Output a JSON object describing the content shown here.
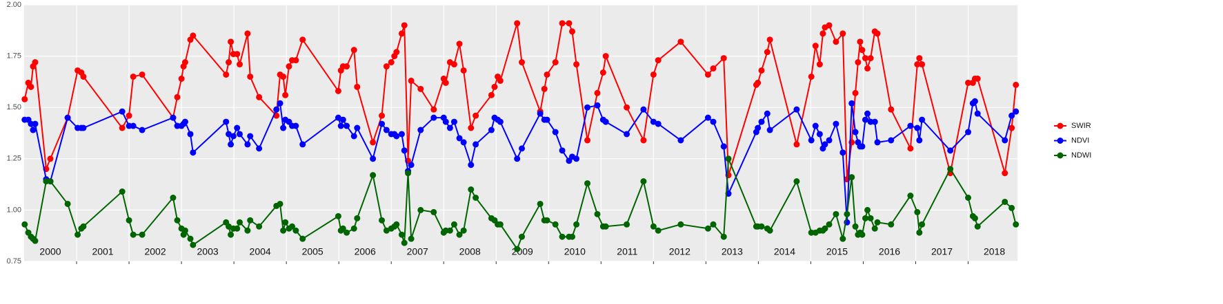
{
  "chart_data": {
    "type": "line",
    "x": [
      2000.01,
      2000.08,
      2000.13,
      2000.17,
      2000.21,
      2000.42,
      2000.5,
      2000.83,
      2001.02,
      2001.09,
      2001.13,
      2001.87,
      2002.0,
      2002.08,
      2002.25,
      2002.84,
      2002.92,
      2003.0,
      2003.04,
      2003.07,
      2003.17,
      2003.22,
      2003.85,
      2003.9,
      2003.94,
      2003.99,
      2004.06,
      2004.11,
      2004.26,
      2004.31,
      2004.48,
      2004.81,
      2004.88,
      2004.94,
      2004.98,
      2005.05,
      2005.11,
      2005.18,
      2005.31,
      2005.99,
      2006.04,
      2006.08,
      2006.15,
      2006.29,
      2006.35,
      2006.65,
      2006.82,
      2006.91,
      2007.0,
      2007.06,
      2007.1,
      2007.2,
      2007.25,
      2007.32,
      2007.38,
      2007.56,
      2007.81,
      2008.0,
      2008.04,
      2008.12,
      2008.2,
      2008.3,
      2008.38,
      2008.52,
      2008.61,
      2008.91,
      2008.97,
      2009.03,
      2009.08,
      2009.4,
      2009.49,
      2009.84,
      2009.92,
      2009.97,
      2010.13,
      2010.26,
      2010.39,
      2010.45,
      2010.53,
      2010.74,
      2010.93,
      2011.04,
      2011.09,
      2011.49,
      2011.81,
      2012.0,
      2012.09,
      2012.52,
      2013.04,
      2013.14,
      2013.34,
      2013.43,
      2013.96,
      2013.99,
      2014.06,
      2014.17,
      2014.22,
      2014.73,
      2015.01,
      2015.09,
      2015.17,
      2015.23,
      2015.27,
      2015.35,
      2015.48,
      2015.61,
      2015.69,
      2015.78,
      2015.85,
      2015.9,
      2015.94,
      2015.98,
      2016.04,
      2016.08,
      2016.14,
      2016.22,
      2016.27,
      2016.53,
      2016.9,
      2017.03,
      2017.07,
      2017.12,
      2017.66,
      2018.0,
      2018.09,
      2018.13,
      2018.18,
      2018.7,
      2018.83,
      2018.91
    ],
    "series": [
      {
        "name": "SWIR",
        "color": "#ff0000",
        "values": [
          1.54,
          1.62,
          1.6,
          1.7,
          1.72,
          1.2,
          1.25,
          1.45,
          1.68,
          1.67,
          1.65,
          1.4,
          1.46,
          1.65,
          1.66,
          1.45,
          1.55,
          1.64,
          1.7,
          1.72,
          1.83,
          1.85,
          1.66,
          1.72,
          1.82,
          1.76,
          1.76,
          1.71,
          1.86,
          1.65,
          1.55,
          1.46,
          1.66,
          1.65,
          1.56,
          1.7,
          1.73,
          1.73,
          1.83,
          1.58,
          1.68,
          1.7,
          1.7,
          1.78,
          1.6,
          1.33,
          1.46,
          1.7,
          1.72,
          1.75,
          1.77,
          1.86,
          1.9,
          1.24,
          1.63,
          1.59,
          1.49,
          1.64,
          1.62,
          1.72,
          1.71,
          1.81,
          1.68,
          1.4,
          1.46,
          1.56,
          1.6,
          1.65,
          1.63,
          1.91,
          1.72,
          1.48,
          1.59,
          1.66,
          1.72,
          1.91,
          1.91,
          1.87,
          1.71,
          1.34,
          1.57,
          1.67,
          1.75,
          1.5,
          1.34,
          1.66,
          1.73,
          1.82,
          1.66,
          1.69,
          1.74,
          1.17,
          1.61,
          1.62,
          1.68,
          1.77,
          1.83,
          1.32,
          1.65,
          1.8,
          1.71,
          1.86,
          1.89,
          1.9,
          1.82,
          1.86,
          1.15,
          1.33,
          1.57,
          1.72,
          1.82,
          1.78,
          1.74,
          1.69,
          1.74,
          1.87,
          1.86,
          1.49,
          1.3,
          1.71,
          1.74,
          1.71,
          1.18,
          1.62,
          1.62,
          1.64,
          1.64,
          1.18,
          1.4,
          1.61
        ]
      },
      {
        "name": "NDVI",
        "color": "#0000ff",
        "values": [
          1.44,
          1.44,
          1.42,
          1.39,
          1.42,
          1.15,
          1.14,
          1.45,
          1.4,
          1.4,
          1.4,
          1.48,
          1.41,
          1.41,
          1.39,
          1.45,
          1.41,
          1.41,
          1.42,
          1.43,
          1.37,
          1.28,
          1.43,
          1.37,
          1.32,
          1.36,
          1.4,
          1.37,
          1.32,
          1.36,
          1.3,
          1.49,
          1.52,
          1.4,
          1.44,
          1.43,
          1.41,
          1.41,
          1.32,
          1.45,
          1.41,
          1.44,
          1.41,
          1.36,
          1.4,
          1.25,
          1.42,
          1.39,
          1.37,
          1.37,
          1.36,
          1.37,
          1.29,
          1.19,
          1.22,
          1.39,
          1.45,
          1.45,
          1.43,
          1.4,
          1.43,
          1.35,
          1.33,
          1.22,
          1.32,
          1.39,
          1.45,
          1.44,
          1.43,
          1.25,
          1.3,
          1.47,
          1.44,
          1.44,
          1.38,
          1.29,
          1.24,
          1.26,
          1.25,
          1.5,
          1.51,
          1.44,
          1.43,
          1.37,
          1.49,
          1.43,
          1.42,
          1.34,
          1.45,
          1.43,
          1.31,
          1.08,
          1.38,
          1.4,
          1.43,
          1.47,
          1.39,
          1.49,
          1.34,
          1.41,
          1.37,
          1.3,
          1.32,
          1.34,
          1.42,
          1.28,
          0.94,
          1.52,
          1.38,
          1.33,
          1.31,
          1.31,
          1.44,
          1.47,
          1.43,
          1.43,
          1.33,
          1.34,
          1.41,
          1.4,
          1.34,
          1.44,
          1.29,
          1.38,
          1.52,
          1.53,
          1.47,
          1.34,
          1.46,
          1.48
        ]
      },
      {
        "name": "NDWI",
        "color": "#006400",
        "values": [
          0.93,
          0.89,
          0.87,
          0.86,
          0.85,
          1.14,
          1.14,
          1.03,
          0.88,
          0.91,
          0.92,
          1.09,
          0.95,
          0.88,
          0.88,
          1.06,
          0.95,
          0.91,
          0.88,
          0.9,
          0.86,
          0.83,
          0.94,
          0.92,
          0.88,
          0.91,
          0.91,
          0.94,
          0.9,
          0.95,
          0.92,
          1.02,
          1.03,
          0.9,
          0.94,
          0.91,
          0.92,
          0.9,
          0.86,
          0.97,
          0.9,
          0.91,
          0.89,
          0.91,
          0.96,
          1.17,
          0.95,
          0.9,
          0.91,
          0.92,
          0.93,
          0.88,
          0.84,
          1.18,
          0.86,
          1.0,
          0.99,
          0.89,
          0.9,
          0.9,
          0.93,
          0.88,
          0.9,
          1.1,
          1.06,
          0.96,
          0.95,
          0.93,
          0.93,
          0.81,
          0.87,
          1.03,
          0.95,
          0.95,
          0.93,
          0.87,
          0.87,
          0.87,
          0.93,
          1.13,
          0.98,
          0.92,
          0.92,
          0.93,
          1.14,
          0.92,
          0.9,
          0.93,
          0.91,
          0.93,
          0.87,
          1.25,
          0.92,
          0.92,
          0.92,
          0.91,
          0.9,
          1.14,
          0.89,
          0.89,
          0.9,
          0.9,
          0.91,
          0.93,
          0.98,
          0.86,
          0.98,
          1.16,
          0.92,
          0.88,
          0.89,
          0.88,
          0.96,
          1.0,
          0.96,
          0.91,
          0.94,
          0.93,
          1.07,
          0.99,
          0.89,
          0.93,
          1.2,
          1.06,
          0.97,
          0.96,
          0.92,
          1.04,
          1.01,
          0.93
        ]
      }
    ],
    "xlim": [
      2000,
      2018.94
    ],
    "xgrid": [
      2001,
      2002,
      2003,
      2004,
      2005,
      2006,
      2007,
      2008,
      2009,
      2010,
      2011,
      2012,
      2013,
      2014,
      2015,
      2016,
      2017,
      2018
    ],
    "xticks": [
      {
        "value": 2000.5,
        "label": "2000"
      },
      {
        "value": 2001.5,
        "label": "2001"
      },
      {
        "value": 2002.5,
        "label": "2002"
      },
      {
        "value": 2003.5,
        "label": "2003"
      },
      {
        "value": 2004.5,
        "label": "2004"
      },
      {
        "value": 2005.5,
        "label": "2005"
      },
      {
        "value": 2006.5,
        "label": "2006"
      },
      {
        "value": 2007.5,
        "label": "2007"
      },
      {
        "value": 2008.5,
        "label": "2008"
      },
      {
        "value": 2009.5,
        "label": "2009"
      },
      {
        "value": 2010.5,
        "label": "2010"
      },
      {
        "value": 2011.5,
        "label": "2011"
      },
      {
        "value": 2012.5,
        "label": "2012"
      },
      {
        "value": 2013.5,
        "label": "2013"
      },
      {
        "value": 2014.5,
        "label": "2014"
      },
      {
        "value": 2015.5,
        "label": "2015"
      },
      {
        "value": 2016.5,
        "label": "2016"
      },
      {
        "value": 2017.5,
        "label": "2017"
      },
      {
        "value": 2018.5,
        "label": "2018"
      }
    ],
    "ylim": [
      0.75,
      2.0
    ],
    "yticks": [
      {
        "value": 0.75,
        "label": "0.75"
      },
      {
        "value": 1.0,
        "label": "1.00"
      },
      {
        "value": 1.25,
        "label": "1.25"
      },
      {
        "value": 1.5,
        "label": "1.50"
      },
      {
        "value": 1.75,
        "label": "1.75"
      },
      {
        "value": 2.0,
        "label": "2.00"
      }
    ],
    "grid": true,
    "legend": "right"
  }
}
